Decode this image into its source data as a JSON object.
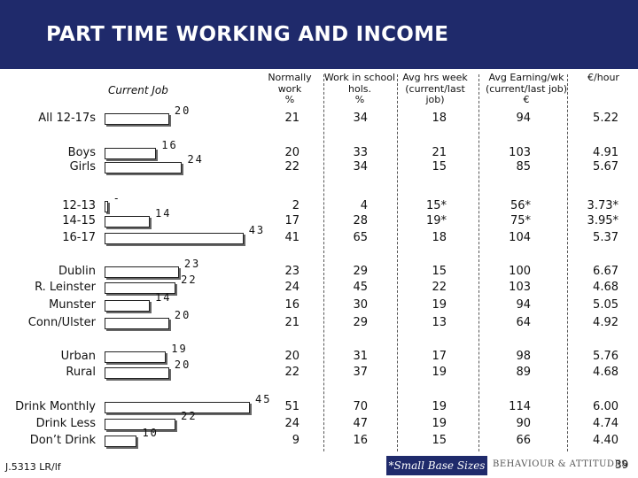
{
  "title": "PART TIME WORKING AND INCOME",
  "current_job_label": "Current Job",
  "columns": {
    "c1": [
      "Normally",
      "work",
      "%"
    ],
    "c2": [
      "Work in school",
      "hols.",
      "%"
    ],
    "c3": [
      "Avg hrs week",
      "(current/last",
      "job)"
    ],
    "c4": [
      "Avg Earning/wk",
      "(current/last job)",
      "€"
    ],
    "c5": [
      "€/hour"
    ]
  },
  "rows": [
    {
      "label": "All 12-17s",
      "c1": "21",
      "c2": "34",
      "c3": "18",
      "c4": "94",
      "c5": "5.22"
    },
    {
      "label": "Boys",
      "c1": "20",
      "c2": "33",
      "c3": "21",
      "c4": "103",
      "c5": "4.91"
    },
    {
      "label": "Girls",
      "c1": "22",
      "c2": "34",
      "c3": "15",
      "c4": "85",
      "c5": "5.67"
    },
    {
      "label": "12-13",
      "c1": "2",
      "c2": "4",
      "c3": "15*",
      "c4": "56*",
      "c5": "3.73*"
    },
    {
      "label": "14-15",
      "c1": "17",
      "c2": "28",
      "c3": "19*",
      "c4": "75*",
      "c5": "3.95*"
    },
    {
      "label": "16-17",
      "c1": "41",
      "c2": "65",
      "c3": "18",
      "c4": "104",
      "c5": "5.37"
    },
    {
      "label": "Dublin",
      "c1": "23",
      "c2": "29",
      "c3": "15",
      "c4": "100",
      "c5": "6.67"
    },
    {
      "label": "R. Leinster",
      "c1": "24",
      "c2": "45",
      "c3": "22",
      "c4": "103",
      "c5": "4.68"
    },
    {
      "label": "Munster",
      "c1": "16",
      "c2": "30",
      "c3": "19",
      "c4": "94",
      "c5": "5.05"
    },
    {
      "label": "Conn/Ulster",
      "c1": "21",
      "c2": "29",
      "c3": "13",
      "c4": "64",
      "c5": "4.92"
    },
    {
      "label": "Urban",
      "c1": "20",
      "c2": "31",
      "c3": "17",
      "c4": "98",
      "c5": "5.76"
    },
    {
      "label": "Rural",
      "c1": "22",
      "c2": "37",
      "c3": "19",
      "c4": "89",
      "c5": "4.68"
    },
    {
      "label": "Drink Monthly",
      "c1": "51",
      "c2": "70",
      "c3": "19",
      "c4": "114",
      "c5": "6.00"
    },
    {
      "label": "Drink Less",
      "c1": "24",
      "c2": "47",
      "c3": "19",
      "c4": "90",
      "c5": "4.74"
    },
    {
      "label": "Don’t Drink",
      "c1": "9",
      "c2": "16",
      "c3": "15",
      "c4": "66",
      "c5": "4.40"
    }
  ],
  "chart_data": {
    "type": "bar",
    "orientation": "horizontal",
    "title": "PART TIME WORKING AND INCOME",
    "series": [
      {
        "name": "Current Job",
        "values": [
          20,
          16,
          24,
          1,
          14,
          43,
          23,
          22,
          14,
          20,
          19,
          20,
          45,
          22,
          10
        ]
      }
    ],
    "categories": [
      "All 12-17s",
      "Boys",
      "Girls",
      "12-13",
      "14-15",
      "16-17",
      "Dublin",
      "R. Leinster",
      "Munster",
      "Conn/Ulster",
      "Urban",
      "Rural",
      "Drink Monthly",
      "Drink Less",
      "Don’t Drink"
    ],
    "value_labels": [
      "20",
      "16",
      "24",
      "-",
      "14",
      "43",
      "23",
      "22",
      "14",
      "20",
      "19",
      "20",
      "45",
      "22",
      "10"
    ],
    "xlim": [
      0,
      45
    ]
  },
  "footer": {
    "ref": "J.5313 LR/lf",
    "note": "*Small Base Sizes",
    "logo": "BEHAVIOUR & ATTITUDES",
    "page": "39"
  }
}
